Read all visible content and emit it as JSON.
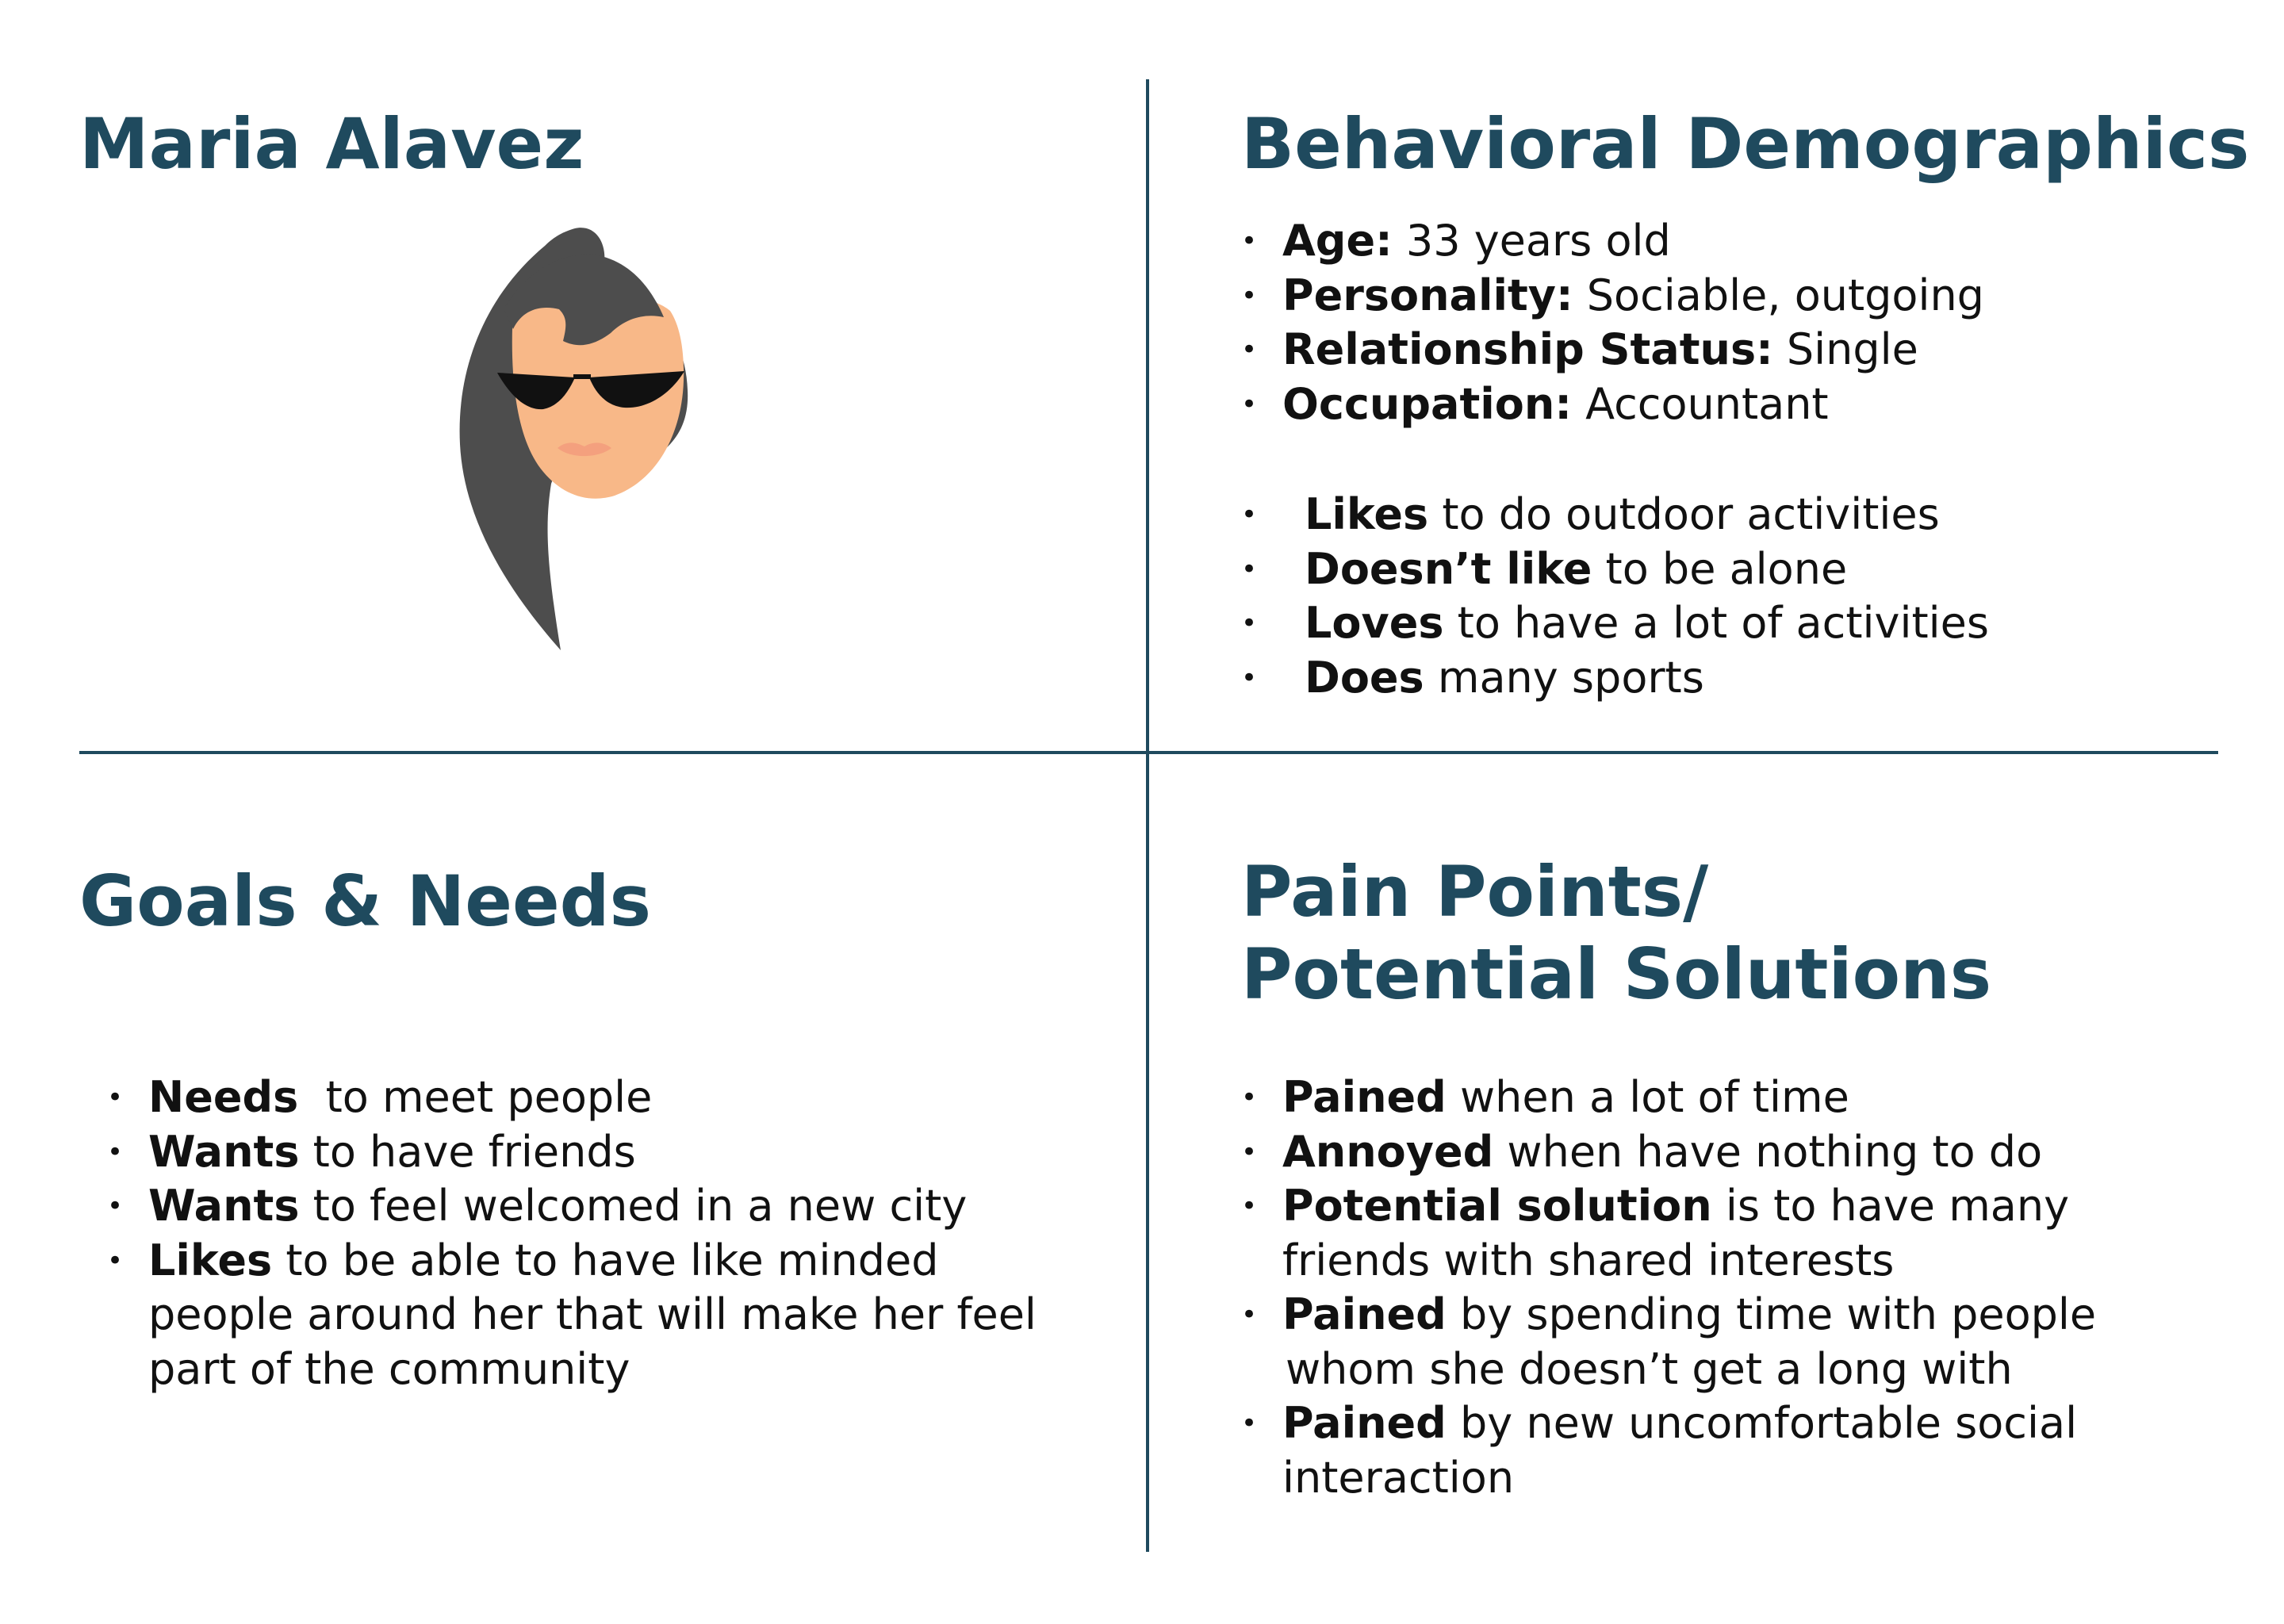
{
  "persona": {
    "name": "Maria Alavez",
    "colors": {
      "heading": "#1f4a5e",
      "hair": "#4d4d4d",
      "skin": "#f8b888",
      "lips": "#f4a07e",
      "sunglasses": "#111111"
    }
  },
  "demographics": {
    "title": "Behavioral Demographics",
    "facts": [
      {
        "label": "Age:",
        "value": " 33 years old"
      },
      {
        "label": "Personality:",
        "value": " Sociable, outgoing"
      },
      {
        "label": "Relationship Status:",
        "value": " Single"
      },
      {
        "label": "Occupation:",
        "value": " Accountant"
      }
    ],
    "behaviors": [
      {
        "bold": "Likes",
        "text": " to do outdoor activities"
      },
      {
        "bold": "Doesn’t like",
        "text": " to be alone"
      },
      {
        "bold": "Loves",
        "text": " to have a lot of activities"
      },
      {
        "bold": "Does",
        "text": " many sports"
      }
    ]
  },
  "goals": {
    "title": "Goals & Needs",
    "items": [
      {
        "bold": "Needs",
        "text": "  to meet people",
        "continuation": []
      },
      {
        "bold": "Wants",
        "text": " to have friends",
        "continuation": []
      },
      {
        "bold": "Wants",
        "text": " to feel welcomed in a new city",
        "continuation": []
      },
      {
        "bold": "Likes",
        "text": " to be able to have like minded",
        "continuation": [
          "people around her that will make her feel",
          "part of the community"
        ]
      }
    ]
  },
  "pain_points": {
    "title_line1": "Pain Points/",
    "title_line2": "Potential Solutions",
    "items": [
      {
        "bold": "Pained",
        "text": " when a lot of time",
        "continuation": []
      },
      {
        "bold": "Annoyed",
        "text": " when have nothing to do",
        "continuation": []
      },
      {
        "bold": "Potential solution",
        "text": " is to have many",
        "continuation": [
          "friends with shared interests"
        ]
      },
      {
        "bold": "Pained",
        "text": " by spending time with people",
        "continuation": [
          "whom she doesn’t get a long with"
        ]
      },
      {
        "bold": "Pained",
        "text": " by new uncomfortable social",
        "continuation": [
          "interaction"
        ]
      }
    ]
  }
}
